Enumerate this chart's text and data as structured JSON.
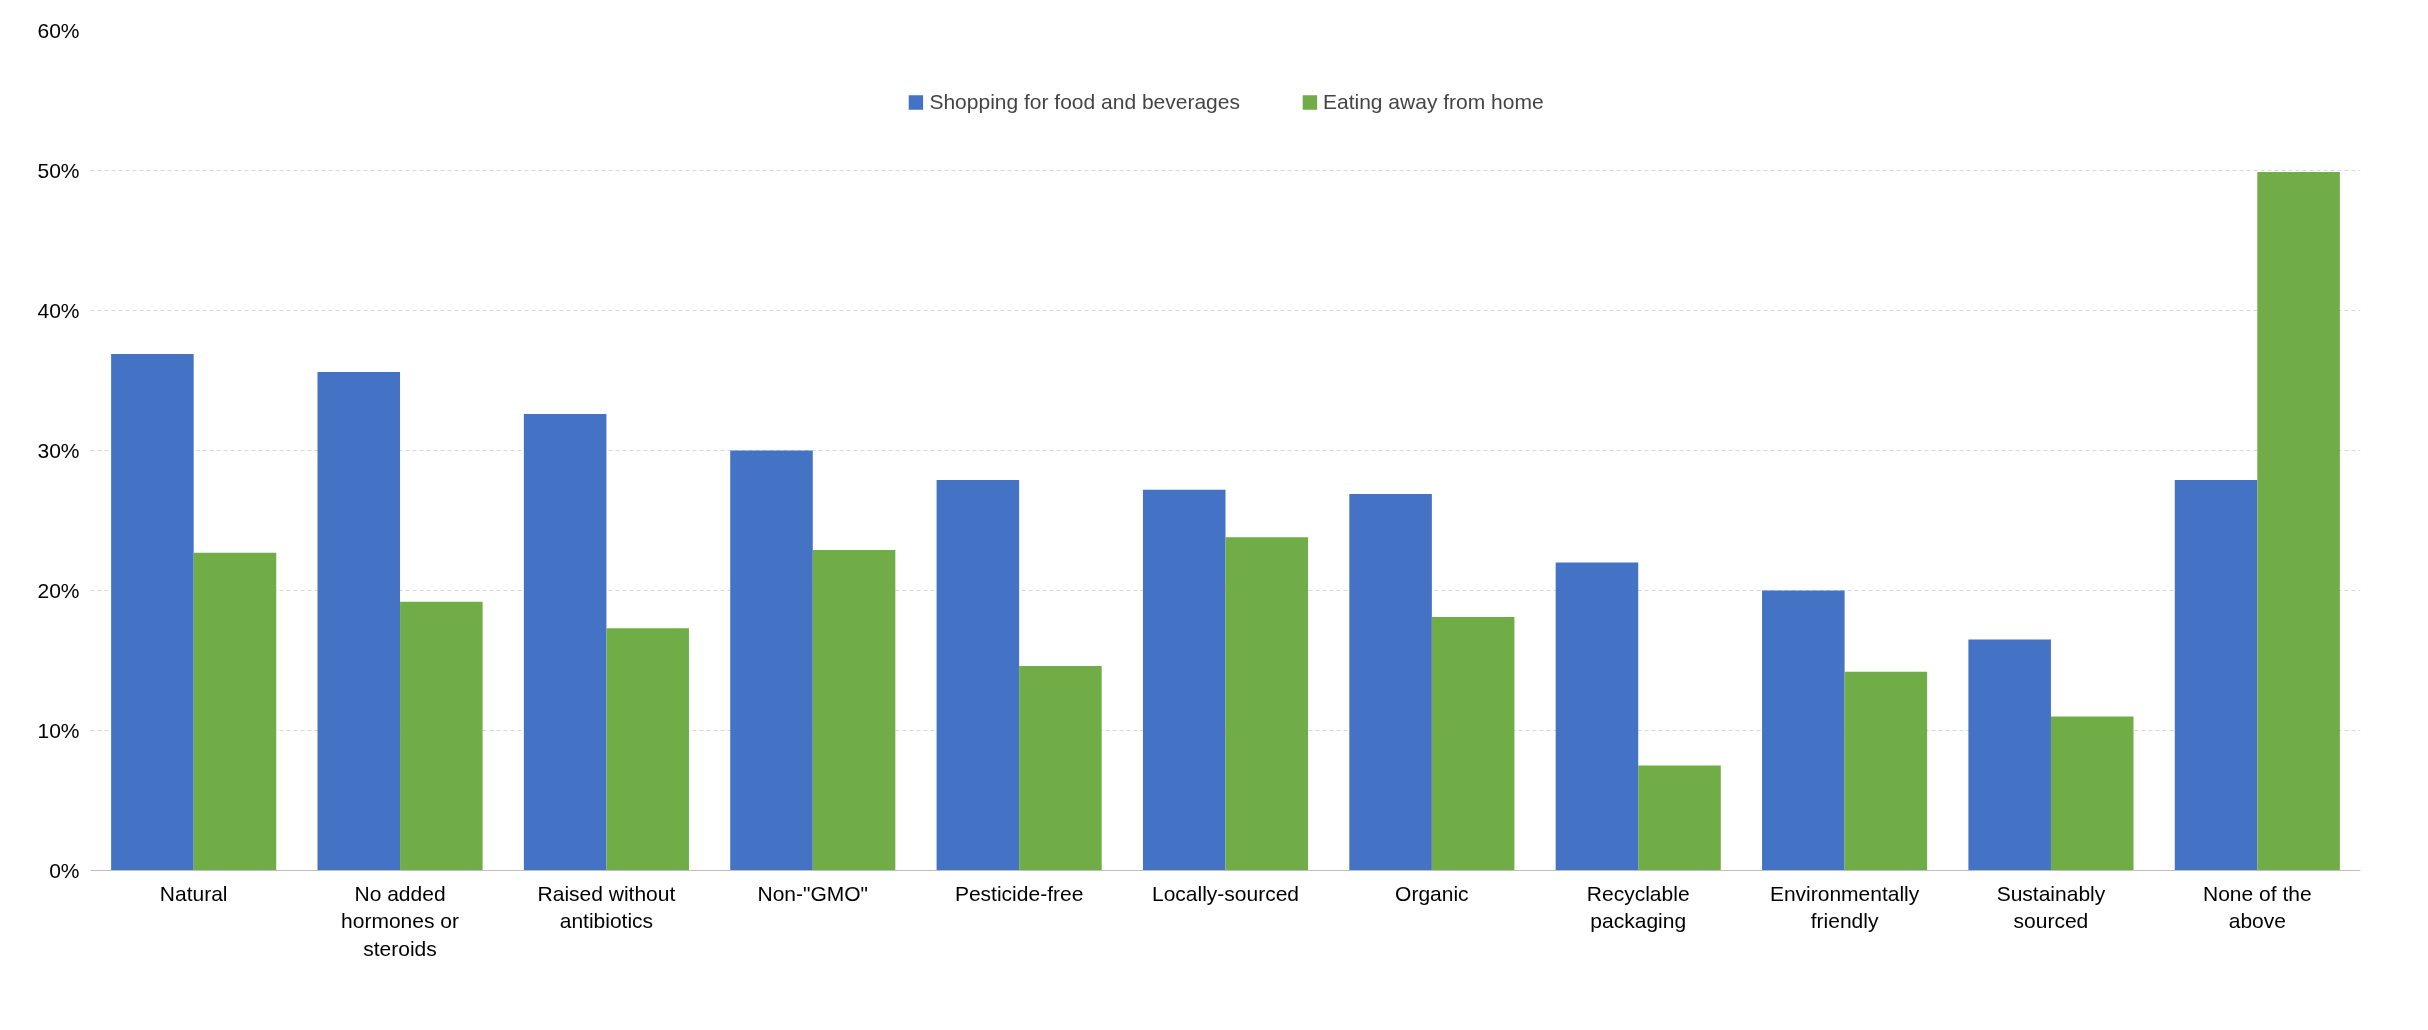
{
  "chart_data": {
    "type": "bar",
    "categories": [
      "Natural",
      "No added\nhormones or\nsteroids",
      "Raised without\nantibiotics",
      "Non-\"GMO\"",
      "Pesticide-free",
      "Locally-sourced",
      "Organic",
      "Recyclable\npackaging",
      "Environmentally\nfriendly",
      "Sustainably\nsourced",
      "None of the\nabove"
    ],
    "series": [
      {
        "name": "Shopping for food and beverages",
        "color": "#4472c4",
        "values": [
          36.9,
          35.6,
          32.6,
          30.0,
          27.9,
          27.2,
          26.9,
          22.0,
          20.0,
          16.5,
          27.9
        ]
      },
      {
        "name": "Eating away from home",
        "color": "#70ad47",
        "values": [
          22.7,
          19.2,
          17.3,
          22.9,
          14.6,
          23.8,
          18.1,
          7.5,
          14.2,
          11.0,
          49.9
        ]
      }
    ],
    "ylim": [
      0,
      60
    ],
    "yticks": [
      {
        "value": 0,
        "label": "0%"
      },
      {
        "value": 10,
        "label": "10%"
      },
      {
        "value": 20,
        "label": "20%"
      },
      {
        "value": 30,
        "label": "30%"
      },
      {
        "value": 40,
        "label": "40%"
      },
      {
        "value": 50,
        "label": "50%"
      },
      {
        "value": 60,
        "label": "60%"
      }
    ],
    "grid": "y",
    "legend": "top"
  }
}
